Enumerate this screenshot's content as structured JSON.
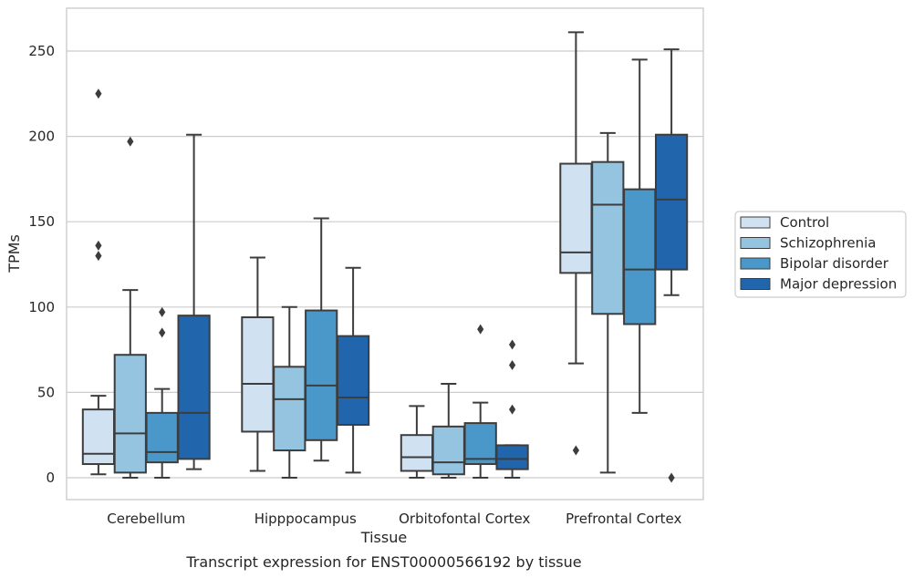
{
  "caption": "Transcript expression for ENST00000566192 by tissue",
  "chart_data": {
    "type": "box",
    "xlabel": "Tissue",
    "ylabel": "TPMs",
    "ylim": [
      -12,
      276
    ],
    "yticks": [
      0,
      50,
      100,
      150,
      200,
      250
    ],
    "grid": "horizontal",
    "legend_position": "right",
    "categories": [
      "Cerebellum",
      "Hipppocampus",
      "Orbitofontal Cortex",
      "Prefrontal Cortex"
    ],
    "series": [
      {
        "name": "Control",
        "color": "#d0e1f2",
        "boxes": [
          {
            "whislo": 2,
            "q1": 8,
            "med": 14,
            "q3": 40,
            "whishi": 48,
            "fliers": [
              130,
              136,
              225
            ]
          },
          {
            "whislo": 4,
            "q1": 27,
            "med": 55,
            "q3": 94,
            "whishi": 129,
            "fliers": []
          },
          {
            "whislo": 0,
            "q1": 4,
            "med": 12,
            "q3": 25,
            "whishi": 42,
            "fliers": []
          },
          {
            "whislo": 67,
            "q1": 120,
            "med": 132,
            "q3": 184,
            "whishi": 261,
            "fliers": [
              16
            ]
          }
        ]
      },
      {
        "name": "Schizophrenia",
        "color": "#94c4df",
        "boxes": [
          {
            "whislo": 0,
            "q1": 3,
            "med": 26,
            "q3": 72,
            "whishi": 110,
            "fliers": [
              197
            ]
          },
          {
            "whislo": 0,
            "q1": 16,
            "med": 46,
            "q3": 65,
            "whishi": 100,
            "fliers": []
          },
          {
            "whislo": 0,
            "q1": 2,
            "med": 9,
            "q3": 30,
            "whishi": 55,
            "fliers": []
          },
          {
            "whislo": 3,
            "q1": 96,
            "med": 160,
            "q3": 185,
            "whishi": 202,
            "fliers": []
          }
        ]
      },
      {
        "name": "Bipolar disorder",
        "color": "#4a98c9",
        "boxes": [
          {
            "whislo": 0,
            "q1": 9,
            "med": 15,
            "q3": 38,
            "whishi": 52,
            "fliers": [
              85,
              97
            ]
          },
          {
            "whislo": 10,
            "q1": 22,
            "med": 54,
            "q3": 98,
            "whishi": 152,
            "fliers": []
          },
          {
            "whislo": 0,
            "q1": 8,
            "med": 11,
            "q3": 32,
            "whishi": 44,
            "fliers": [
              87
            ]
          },
          {
            "whislo": 38,
            "q1": 90,
            "med": 122,
            "q3": 169,
            "whishi": 245,
            "fliers": []
          }
        ]
      },
      {
        "name": "Major depression",
        "color": "#2166ac",
        "boxes": [
          {
            "whislo": 5,
            "q1": 11,
            "med": 38,
            "q3": 95,
            "whishi": 201,
            "fliers": []
          },
          {
            "whislo": 3,
            "q1": 31,
            "med": 47,
            "q3": 83,
            "whishi": 123,
            "fliers": []
          },
          {
            "whislo": 0,
            "q1": 5,
            "med": 11,
            "q3": 19,
            "whishi": 19,
            "fliers": [
              40,
              66,
              78
            ]
          },
          {
            "whislo": 107,
            "q1": 122,
            "med": 163,
            "q3": 201,
            "whishi": 251,
            "fliers": [
              0
            ]
          }
        ]
      }
    ]
  }
}
